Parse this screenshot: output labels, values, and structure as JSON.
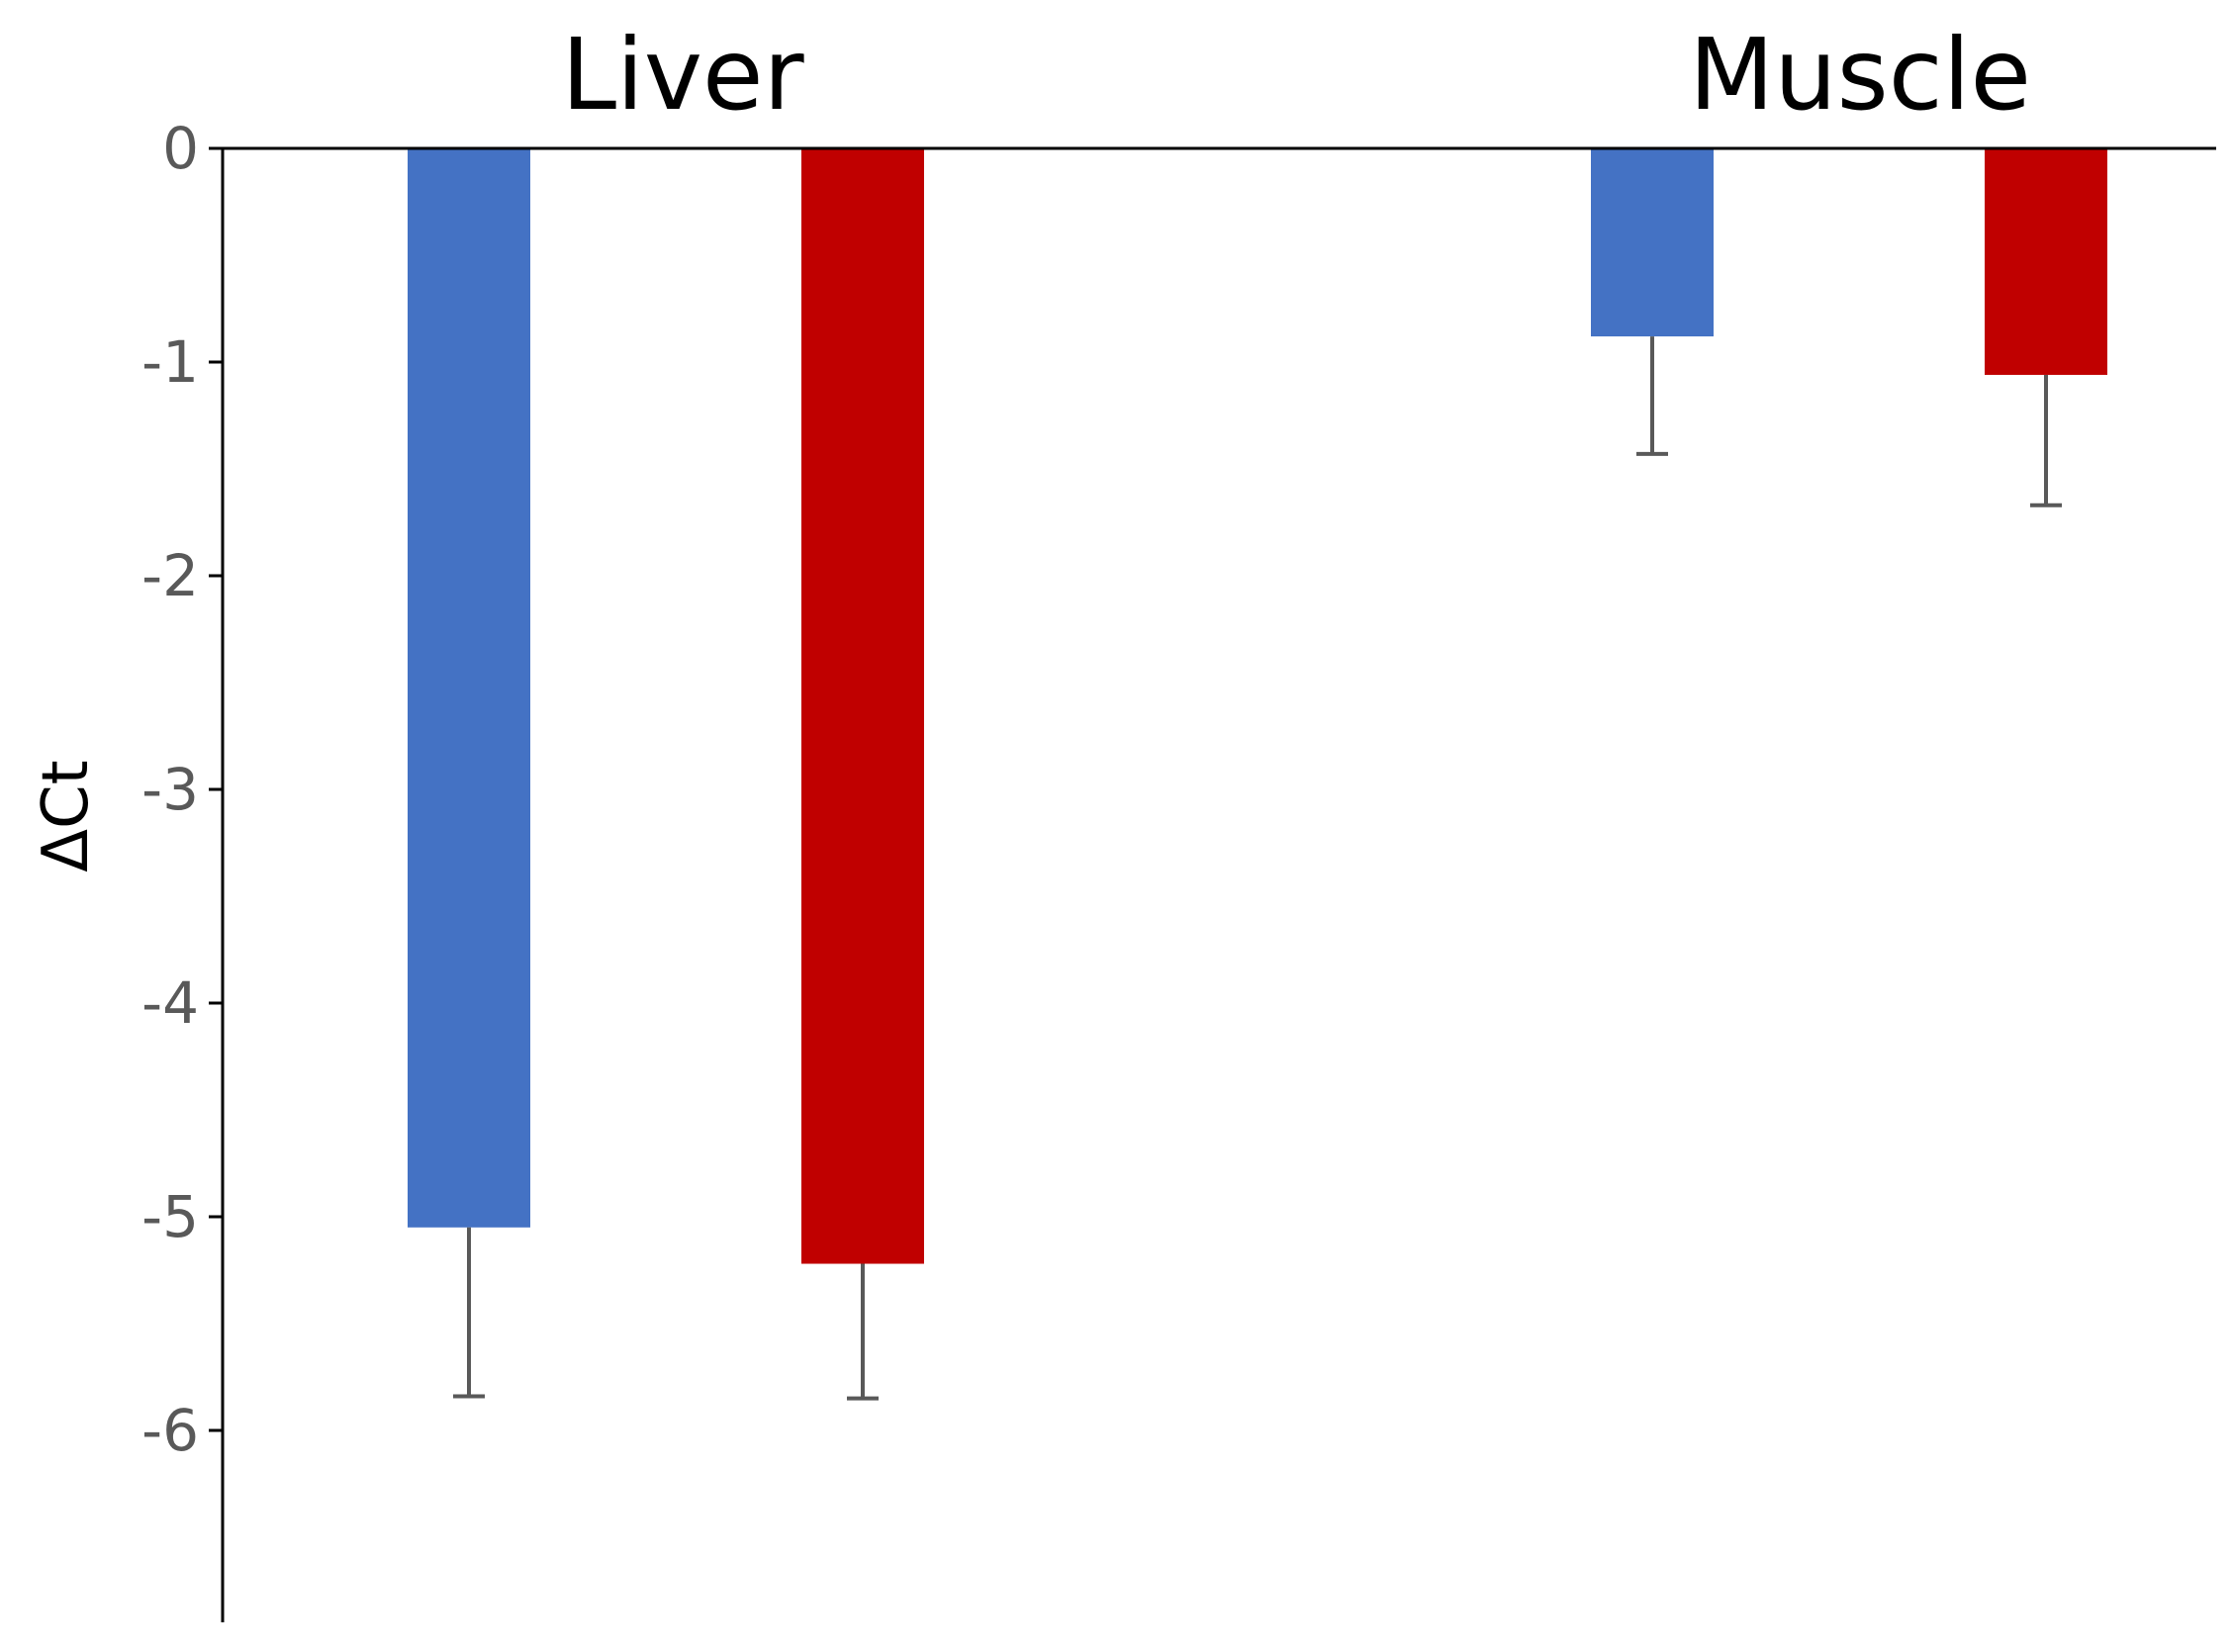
{
  "chart_data": {
    "type": "bar",
    "title": "",
    "xlabel": "",
    "ylabel": "ΔCt",
    "categories": [
      "Liver",
      "Muscle"
    ],
    "ylim": [
      -6.9,
      0
    ],
    "yticks": [
      0,
      -1,
      -2,
      -3,
      -4,
      -5,
      -6
    ],
    "grid": false,
    "legend": "none",
    "category_labels_position": "top",
    "series": [
      {
        "color": "#4472C4",
        "values": [
          -5.05,
          -0.88
        ],
        "error": [
          0.79,
          0.55
        ]
      },
      {
        "color": "#C00000",
        "values": [
          -5.22,
          -1.06
        ],
        "error": [
          0.63,
          0.61
        ]
      }
    ]
  },
  "colors": {
    "axis": "#000000",
    "tick_text": "#595959",
    "error_bar": "#595959"
  }
}
